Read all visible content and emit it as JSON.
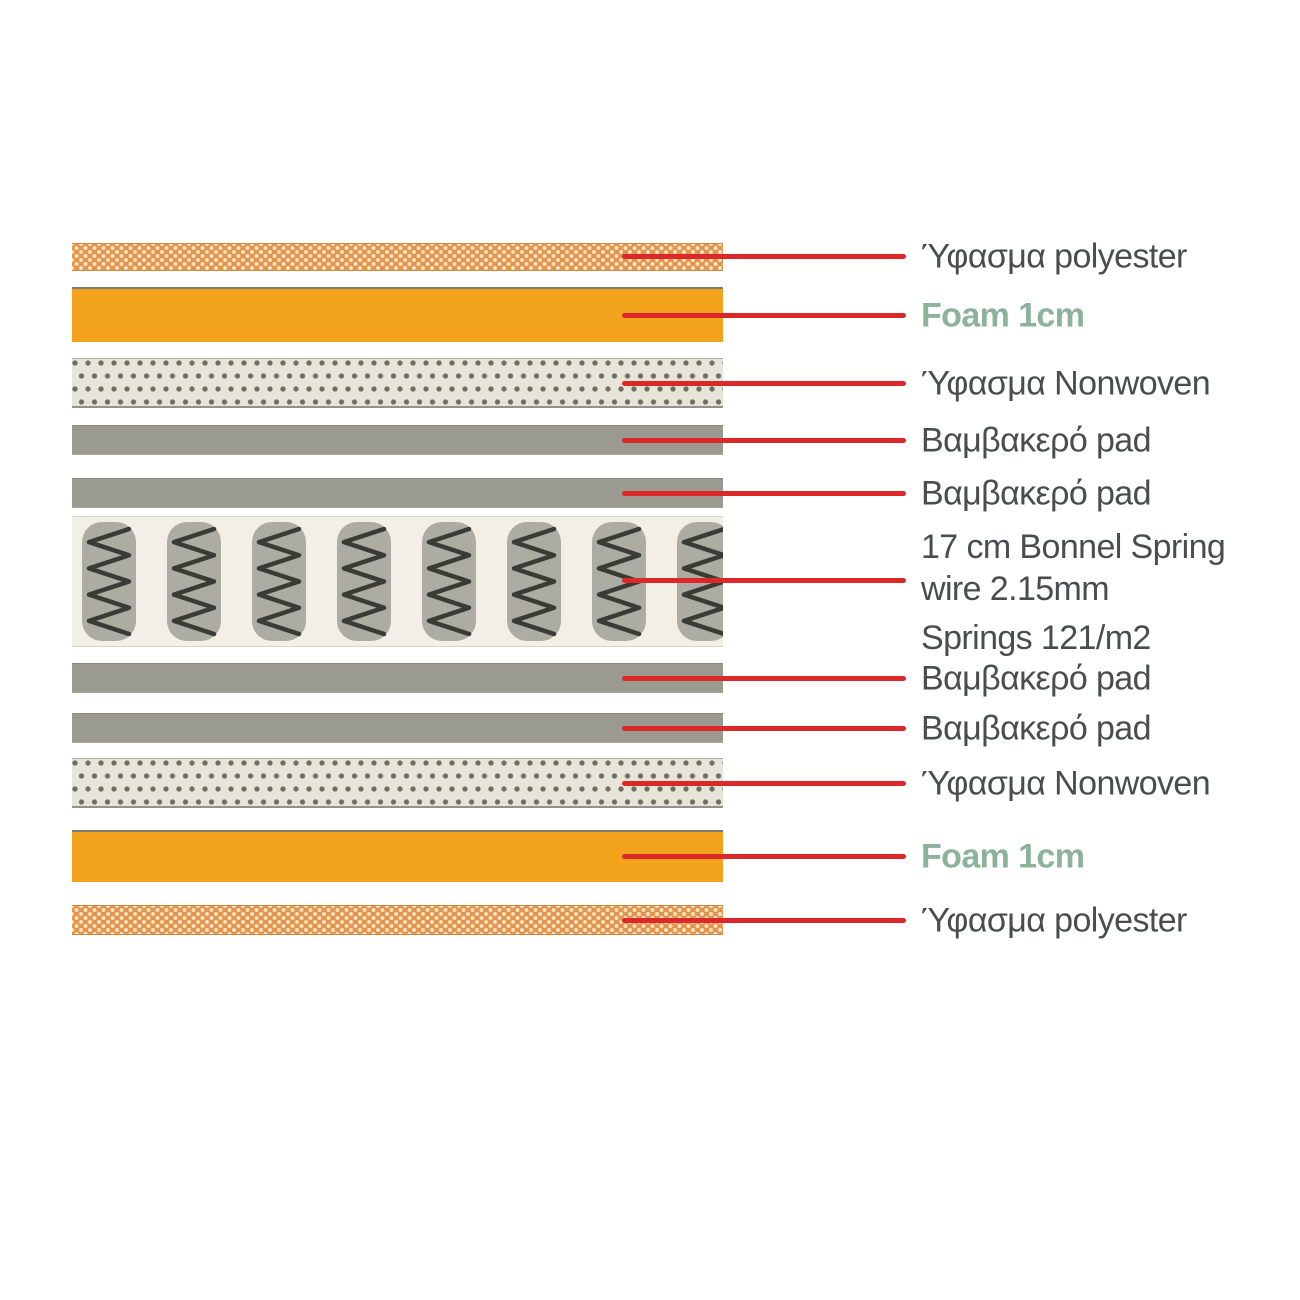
{
  "diagram": {
    "name": "mattress-layer-cross-section",
    "language": "Greek / English"
  },
  "colors": {
    "label_text": "#4a4d50",
    "foam_label_text": "#8cb29a",
    "leader_line": "#dc2828",
    "foam_fill": "#f2a31b",
    "mesh_fill": "#e2954b",
    "mesh_dot": "#f7e4c4",
    "nonwoven_fill": "#e7e4d9",
    "nonwoven_dot": "#6f6e5e",
    "pad_fill": "#9b9a90",
    "spring_background": "#f2efe7",
    "spring_pill": "#adaca2",
    "spring_wire": "#3b3b36"
  },
  "layers": [
    {
      "type": "fabric-polyester",
      "label": "Ύφασμα polyester"
    },
    {
      "type": "foam",
      "label": "Foam 1cm"
    },
    {
      "type": "fabric-nonwoven",
      "label": "Ύφασμα Nonwoven"
    },
    {
      "type": "cotton-pad",
      "label": "Βαμβακερό pad"
    },
    {
      "type": "cotton-pad",
      "label": "Βαμβακερό pad"
    },
    {
      "type": "bonnel-springs",
      "label_lines": [
        "17 cm Bonnel Spring",
        "wire 2.15mm",
        "Springs 121/m2"
      ],
      "springs": {
        "count": 8
      }
    },
    {
      "type": "cotton-pad",
      "label": "Βαμβακερό pad"
    },
    {
      "type": "cotton-pad",
      "label": "Βαμβακερό pad"
    },
    {
      "type": "fabric-nonwoven",
      "label": "Ύφασμα Nonwoven"
    },
    {
      "type": "foam",
      "label": "Foam 1cm"
    },
    {
      "type": "fabric-polyester",
      "label": "Ύφασμα polyester"
    }
  ]
}
